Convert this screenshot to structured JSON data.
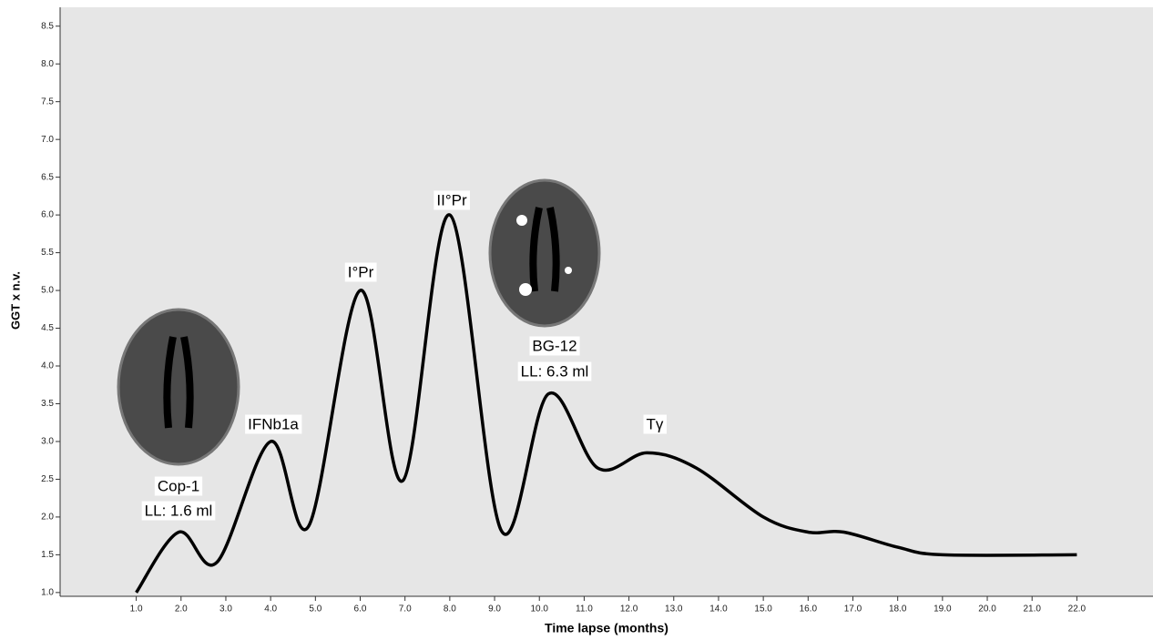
{
  "chart_data": {
    "type": "line",
    "y_label": "GGT x n.v.",
    "x_label": "Time lapse (months)",
    "x": [
      1,
      1.95,
      2.8,
      4,
      4.85,
      6,
      6.95,
      8,
      9.15,
      10.2,
      11.3,
      12.4,
      13.5,
      15,
      16,
      16.8,
      18,
      19,
      22
    ],
    "series": [
      {
        "color": "#000000",
        "values": [
          1.0,
          1.8,
          1.4,
          3.0,
          1.88,
          5.0,
          2.48,
          6.0,
          1.82,
          3.63,
          2.65,
          2.85,
          2.65,
          2.0,
          1.8,
          1.8,
          1.6,
          1.5,
          1.5
        ]
      }
    ],
    "xlim": [
      -0.7,
      23.7
    ],
    "ylim": [
      0.95,
      8.75
    ],
    "xticks": [
      {
        "value": 1,
        "label": "1.0"
      },
      {
        "value": 2,
        "label": "2.0"
      },
      {
        "value": 3,
        "label": "3.0"
      },
      {
        "value": 4,
        "label": "4.0"
      },
      {
        "value": 5,
        "label": "5.0"
      },
      {
        "value": 6,
        "label": "6.0"
      },
      {
        "value": 7,
        "label": "7.0"
      },
      {
        "value": 8,
        "label": "8.0"
      },
      {
        "value": 9,
        "label": "9.0"
      },
      {
        "value": 10,
        "label": "10.0"
      },
      {
        "value": 11,
        "label": "11.0"
      },
      {
        "value": 12,
        "label": "12.0"
      },
      {
        "value": 13,
        "label": "13.0"
      },
      {
        "value": 14,
        "label": "14.0"
      },
      {
        "value": 15,
        "label": "15.0"
      },
      {
        "value": 16,
        "label": "16.0"
      },
      {
        "value": 17,
        "label": "17.0"
      },
      {
        "value": 18,
        "label": "18.0"
      },
      {
        "value": 19,
        "label": "19.0"
      },
      {
        "value": 20,
        "label": "20.0"
      },
      {
        "value": 21,
        "label": "21.0"
      },
      {
        "value": 22,
        "label": "22.0"
      }
    ],
    "yticks": [
      {
        "value": 1,
        "label": "1.0"
      },
      {
        "value": 1.5,
        "label": "1.5"
      },
      {
        "value": 2,
        "label": "2.0"
      },
      {
        "value": 2.5,
        "label": "2.5"
      },
      {
        "value": 3,
        "label": "3.0"
      },
      {
        "value": 3.5,
        "label": "3.5"
      },
      {
        "value": 4,
        "label": "4.0"
      },
      {
        "value": 4.5,
        "label": "4.5"
      },
      {
        "value": 5,
        "label": "5.0"
      },
      {
        "value": 5.5,
        "label": "5.5"
      },
      {
        "value": 6,
        "label": "6.0"
      },
      {
        "value": 6.5,
        "label": "6.5"
      },
      {
        "value": 7,
        "label": "7.0"
      },
      {
        "value": 7.5,
        "label": "7.5"
      },
      {
        "value": 8,
        "label": "8.0"
      },
      {
        "value": 8.5,
        "label": "8.5"
      }
    ],
    "annotations": [
      "Cop-1",
      "LL: 1.6 ml",
      "IFNb1a",
      "I°Pr",
      "II°Pr",
      "BG-12",
      "LL: 6.3 ml",
      "Tγ"
    ]
  }
}
